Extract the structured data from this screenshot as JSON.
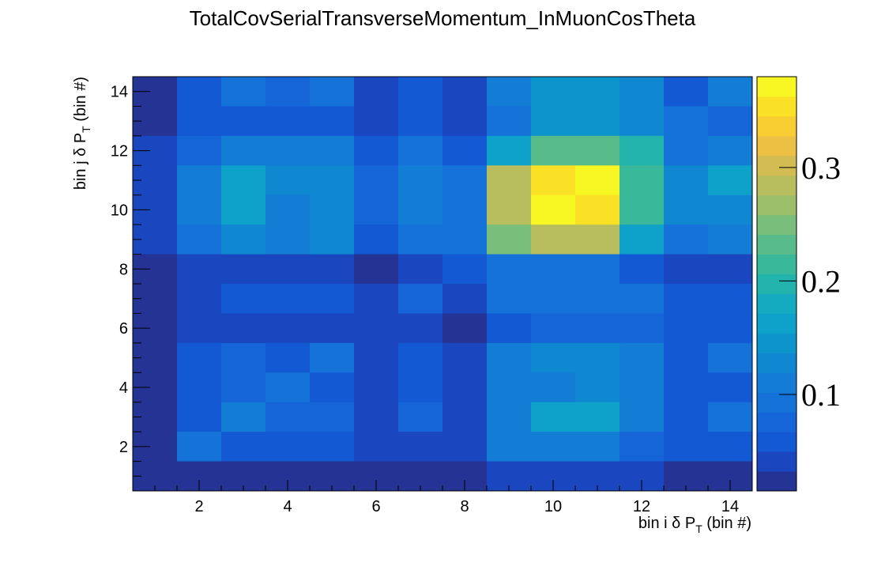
{
  "chart_data": {
    "type": "heatmap",
    "title": "TotalCovSerialTransverseMomentum_InMuonCosTheta",
    "xlabel": {
      "pre": "bin i δ P",
      "sub": "T",
      "post": " (bin #)"
    },
    "ylabel": {
      "pre": "bin j δ P",
      "sub": "T",
      "post": " (bin #)"
    },
    "xlim": [
      0.5,
      14.5
    ],
    "ylim": [
      0.5,
      14.5
    ],
    "x_ticks": [
      2,
      4,
      6,
      8,
      10,
      12,
      14
    ],
    "y_ticks": [
      2,
      4,
      6,
      8,
      10,
      12,
      14
    ],
    "z_range": [
      0.015,
      0.38
    ],
    "z_ticks": [
      0.1,
      0.2,
      0.3
    ],
    "z_tick_labels": [
      "0.1",
      "0.2",
      "0.3"
    ],
    "palette": [
      "#253494",
      "#1a47c0",
      "#1459d4",
      "#1565d8",
      "#1472d8",
      "#137dd6",
      "#1088d1",
      "#0c95cc",
      "#0ea1c9",
      "#14aac0",
      "#22b3ad",
      "#39b89a",
      "#57bb8a",
      "#79be7a",
      "#9abe6a",
      "#b8bd5e",
      "#d3bd53",
      "#ecc043",
      "#f8cd32",
      "#fbe126",
      "#f8f623"
    ],
    "rows_top_to_bottom": [
      [
        0.018,
        0.06,
        0.09,
        0.075,
        0.09,
        0.035,
        0.06,
        0.035,
        0.115,
        0.14,
        0.15,
        0.13,
        0.06,
        0.105
      ],
      [
        0.018,
        0.06,
        0.065,
        0.065,
        0.06,
        0.035,
        0.06,
        0.035,
        0.1,
        0.14,
        0.14,
        0.12,
        0.09,
        0.075
      ],
      [
        0.04,
        0.08,
        0.115,
        0.115,
        0.105,
        0.05,
        0.095,
        0.055,
        0.16,
        0.225,
        0.225,
        0.19,
        0.1,
        0.115
      ],
      [
        0.04,
        0.11,
        0.165,
        0.135,
        0.135,
        0.075,
        0.115,
        0.095,
        0.28,
        0.35,
        0.38,
        0.22,
        0.125,
        0.155
      ],
      [
        0.04,
        0.11,
        0.165,
        0.105,
        0.135,
        0.075,
        0.115,
        0.095,
        0.28,
        0.37,
        0.35,
        0.21,
        0.125,
        0.13
      ],
      [
        0.04,
        0.1,
        0.12,
        0.11,
        0.12,
        0.05,
        0.095,
        0.09,
        0.255,
        0.285,
        0.285,
        0.16,
        0.09,
        0.11
      ],
      [
        0.018,
        0.035,
        0.035,
        0.035,
        0.035,
        0.018,
        0.035,
        0.05,
        0.1,
        0.1,
        0.1,
        0.06,
        0.035,
        0.035
      ],
      [
        0.018,
        0.035,
        0.06,
        0.06,
        0.06,
        0.035,
        0.075,
        0.035,
        0.1,
        0.1,
        0.1,
        0.09,
        0.055,
        0.055
      ],
      [
        0.018,
        0.035,
        0.035,
        0.035,
        0.035,
        0.035,
        0.035,
        0.018,
        0.06,
        0.075,
        0.075,
        0.075,
        0.05,
        0.05
      ],
      [
        0.018,
        0.06,
        0.08,
        0.06,
        0.09,
        0.035,
        0.06,
        0.035,
        0.115,
        0.135,
        0.135,
        0.105,
        0.06,
        0.09
      ],
      [
        0.018,
        0.06,
        0.08,
        0.09,
        0.06,
        0.035,
        0.06,
        0.035,
        0.105,
        0.105,
        0.125,
        0.105,
        0.06,
        0.06
      ],
      [
        0.018,
        0.06,
        0.115,
        0.075,
        0.075,
        0.035,
        0.075,
        0.035,
        0.115,
        0.155,
        0.155,
        0.115,
        0.06,
        0.09
      ],
      [
        0.018,
        0.09,
        0.06,
        0.06,
        0.06,
        0.035,
        0.035,
        0.035,
        0.105,
        0.105,
        0.105,
        0.075,
        0.06,
        0.06
      ],
      [
        0.018,
        0.018,
        0.018,
        0.018,
        0.018,
        0.018,
        0.018,
        0.018,
        0.035,
        0.035,
        0.035,
        0.035,
        0.018,
        0.018
      ]
    ]
  }
}
